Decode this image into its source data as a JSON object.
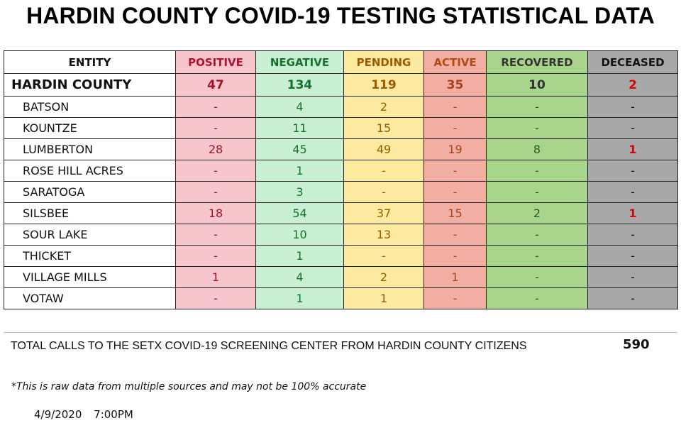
{
  "title": "HARDIN COUNTY COVID-19 TESTING STATISTICAL DATA",
  "columns": [
    "ENTITY",
    "POSITIVE",
    "NEGATIVE",
    "PENDING",
    "ACTIVE",
    "RECOVERED",
    "DECEASED"
  ],
  "rows": [
    [
      "HARDIN COUNTY",
      "47",
      "134",
      "119",
      "35",
      "10",
      "2"
    ],
    [
      "BATSON",
      "-",
      "4",
      "2",
      "-",
      "-",
      "-"
    ],
    [
      "KOUNTZE",
      "-",
      "11",
      "15",
      "-",
      "-",
      "-"
    ],
    [
      "LUMBERTON",
      "28",
      "45",
      "49",
      "19",
      "8",
      "1"
    ],
    [
      "ROSE HILL ACRES",
      "-",
      "1",
      "-",
      "-",
      "-",
      "-"
    ],
    [
      "SARATOGA",
      "-",
      "3",
      "-",
      "-",
      "-",
      "-"
    ],
    [
      "SILSBEE",
      "18",
      "54",
      "37",
      "15",
      "2",
      "1"
    ],
    [
      "SOUR LAKE",
      "-",
      "10",
      "13",
      "-",
      "-",
      "-"
    ],
    [
      "THICKET",
      "-",
      "1",
      "-",
      "-",
      "-",
      "-"
    ],
    [
      "VILLAGE MILLS",
      "1",
      "4",
      "2",
      "1",
      "-",
      "-"
    ],
    [
      "VOTAW",
      "-",
      "1",
      "1",
      "-",
      "-",
      "-"
    ]
  ],
  "total_calls": {
    "label": "TOTAL CALLS TO THE SETX COVID-19 SCREENING CENTER FROM HARDIN COUNTY CITIZENS",
    "value": "590"
  },
  "disclaimer": "*This is raw data from multiple sources and may not be 100% accurate",
  "date": "4/9/2020",
  "time": "7:00PM",
  "colors": {
    "positive_bg": "#f7c6cc",
    "negative_bg": "#c8efd1",
    "pending_bg": "#fbeaa0",
    "active_bg": "#f3aea4",
    "recovered_bg": "#a9d48b",
    "deceased_bg": "#a8a8a8",
    "deceased_highlight": "#e00000"
  }
}
